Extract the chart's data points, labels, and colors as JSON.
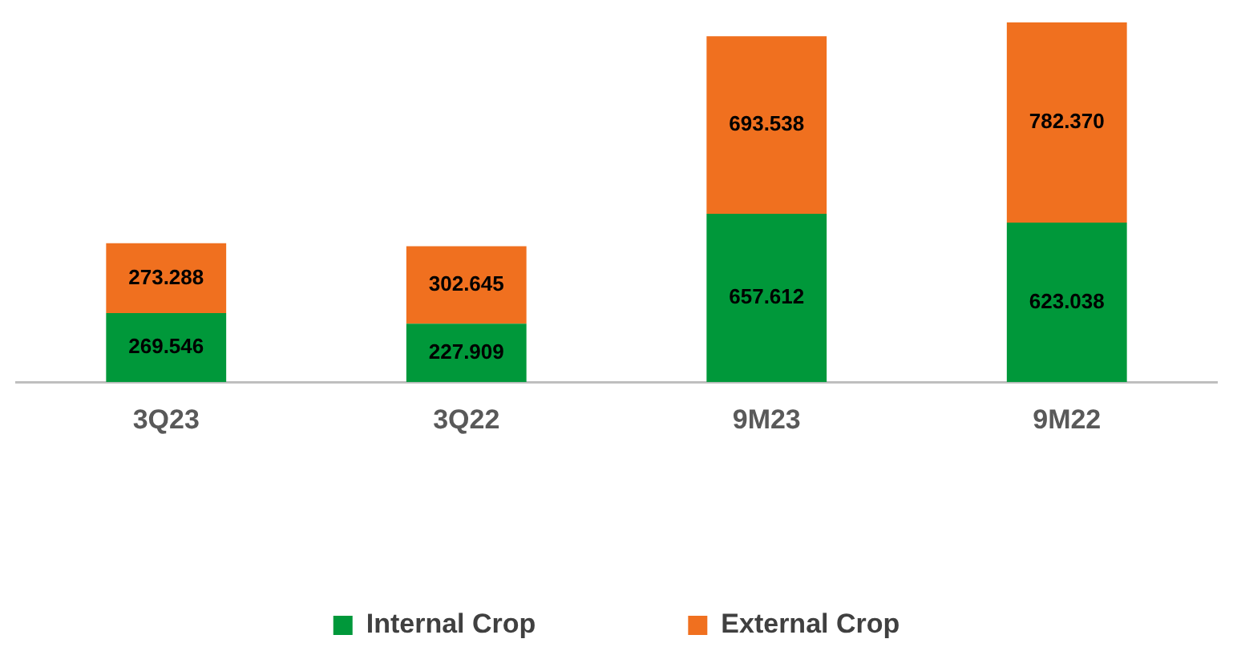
{
  "chart_data": {
    "type": "bar",
    "stacked": true,
    "categories": [
      "3Q23",
      "3Q22",
      "9M23",
      "9M22"
    ],
    "series": [
      {
        "name": "Internal Crop",
        "color": "#00983a",
        "values": [
          269.546,
          227.909,
          657.612,
          623.038
        ],
        "value_labels": [
          "269.546",
          "227.909",
          "657.612",
          "623.038"
        ]
      },
      {
        "name": "External Crop",
        "color": "#f0701f",
        "values": [
          273.288,
          302.645,
          693.538,
          782.37
        ],
        "value_labels": [
          "273.288",
          "302.645",
          "693.538",
          "782.370"
        ]
      }
    ],
    "legend": "bottom",
    "grid": false
  }
}
